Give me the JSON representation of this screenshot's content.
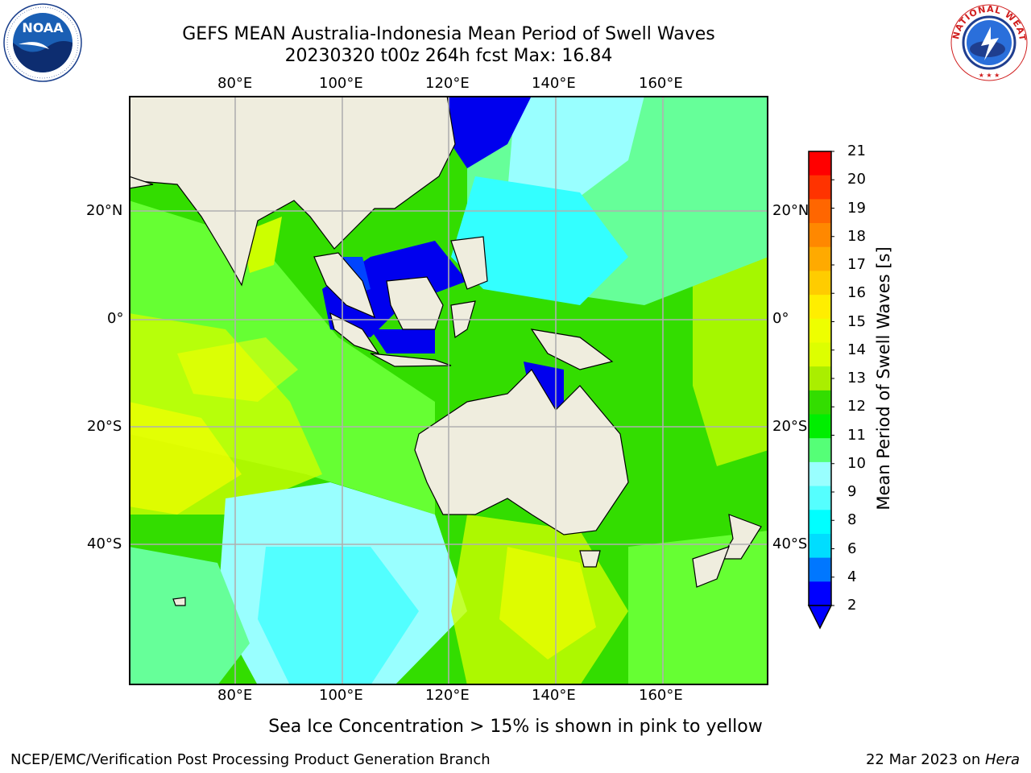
{
  "header": {
    "title": "GEFS MEAN Australia-Indonesia Mean Period of Swell Waves",
    "subtitle": "20230320 t00z 264h fcst   Max: 16.84"
  },
  "map": {
    "lon_ticks": [
      "80°E",
      "100°E",
      "120°E",
      "140°E",
      "160°E"
    ],
    "lat_ticks_left": [
      "20°N",
      "0°",
      "20°S",
      "40°S"
    ],
    "lat_ticks_right": [
      "20°N",
      "0°",
      "20°S",
      "40°S"
    ],
    "land_color": "#efedde",
    "ocean_levels": [
      "#33ffff",
      "#99ffff",
      "#66ff99",
      "#00ee00",
      "#66ff33",
      "#ccff00",
      "#ffff00",
      "#0000ee"
    ]
  },
  "colorbar": {
    "title": "Mean Period of Swell Waves [s]",
    "labels": [
      "21",
      "20",
      "19",
      "18",
      "17",
      "16",
      "15",
      "14",
      "13",
      "12",
      "11",
      "10",
      "9",
      "8",
      "6",
      "4",
      "2"
    ],
    "colors": [
      "#ff0000",
      "#ff3300",
      "#ff6600",
      "#ff8800",
      "#ffaa00",
      "#ffcc00",
      "#ffee00",
      "#eeff00",
      "#ddff00",
      "#aaee00",
      "#33dd00",
      "#00ee00",
      "#55ff77",
      "#99ffff",
      "#55ffff",
      "#00ffff",
      "#00ddff",
      "#0077ff",
      "#0000ff"
    ]
  },
  "footer": {
    "note": "Sea Ice Concentration > 15% is shown in pink to yellow",
    "credit": "NCEP/EMC/Verification Post Processing Product Generation Branch",
    "date": "22 Mar 2023 on ",
    "machine": "Hera"
  },
  "logos": {
    "left_text": "NOAA",
    "left_ring": "NATIONAL OCEANIC AND ATMOSPHERIC ADMINISTRATION · U.S. DEPARTMENT OF COMMERCE",
    "right_ring": "NATIONAL WEATHER SERVICE"
  }
}
